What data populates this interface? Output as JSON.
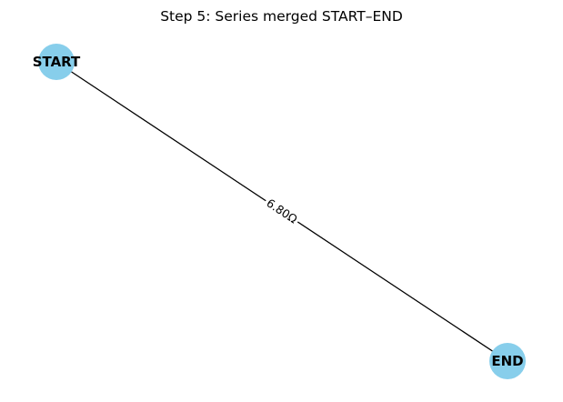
{
  "title": "Step 5: Series merged START–END",
  "colors": {
    "node_fill": "#87CEEB",
    "edge_stroke": "#000000",
    "text": "#000000",
    "background": "#FFFFFF"
  },
  "nodes": [
    {
      "id": "start",
      "label": "START"
    },
    {
      "id": "end",
      "label": "END"
    }
  ],
  "edges": [
    {
      "from": "start",
      "to": "end",
      "label": "6.80Ω"
    }
  ]
}
